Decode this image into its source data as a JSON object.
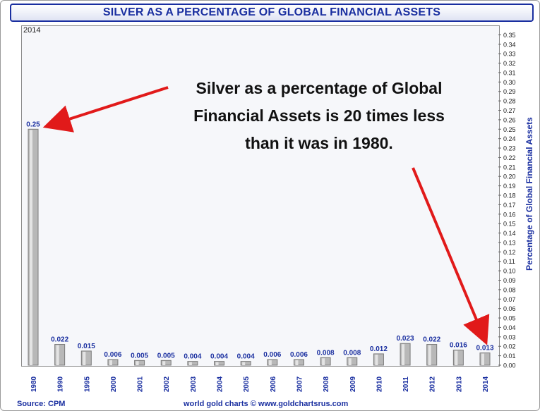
{
  "title": "SILVER AS A PERCENTAGE OF GLOBAL FINANCIAL ASSETS",
  "year_tag": "2014",
  "annotation": {
    "line1": "Silver as a percentage of Global",
    "line2": "Financial Assets is 20 times less",
    "line3": "than it was in 1980."
  },
  "source": "Source: CPM",
  "credit": "world gold charts © www.goldchartsrus.com",
  "colors": {
    "title": "#1a2fa0",
    "bar": "#b8b8b8",
    "arrow": "#e11a1a",
    "value_label": "#1a2fa0"
  },
  "chart_data": {
    "type": "bar",
    "categories": [
      "1980",
      "1990",
      "1995",
      "2000",
      "2001",
      "2002",
      "2003",
      "2004",
      "2005",
      "2006",
      "2007",
      "2008",
      "2009",
      "2010",
      "2011",
      "2012",
      "2013",
      "2014"
    ],
    "values": [
      0.25,
      0.022,
      0.015,
      0.006,
      0.005,
      0.005,
      0.004,
      0.004,
      0.004,
      0.006,
      0.006,
      0.008,
      0.008,
      0.012,
      0.023,
      0.022,
      0.016,
      0.013
    ],
    "value_labels": [
      "0.25",
      "0.022",
      "0.015",
      "0.006",
      "0.005",
      "0.005",
      "0.004",
      "0.004",
      "0.004",
      "0.006",
      "0.006",
      "0.008",
      "0.008",
      "0.012",
      "0.023",
      "0.022",
      "0.016",
      "0.013"
    ],
    "ylabel": "Percentage of Global Financial Assets",
    "ylim": [
      0,
      0.36
    ],
    "y_ticks": [
      "0.00",
      "0.01",
      "0.02",
      "0.03",
      "0.04",
      "0.05",
      "0.06",
      "0.07",
      "0.08",
      "0.09",
      "0.10",
      "0.11",
      "0.12",
      "0.13",
      "0.14",
      "0.15",
      "0.16",
      "0.17",
      "0.18",
      "0.19",
      "0.20",
      "0.21",
      "0.22",
      "0.23",
      "0.24",
      "0.25",
      "0.26",
      "0.27",
      "0.28",
      "0.29",
      "0.30",
      "0.31",
      "0.32",
      "0.33",
      "0.34",
      "0.35"
    ],
    "y_axis_side": "right",
    "grid": false,
    "legend": "none"
  }
}
